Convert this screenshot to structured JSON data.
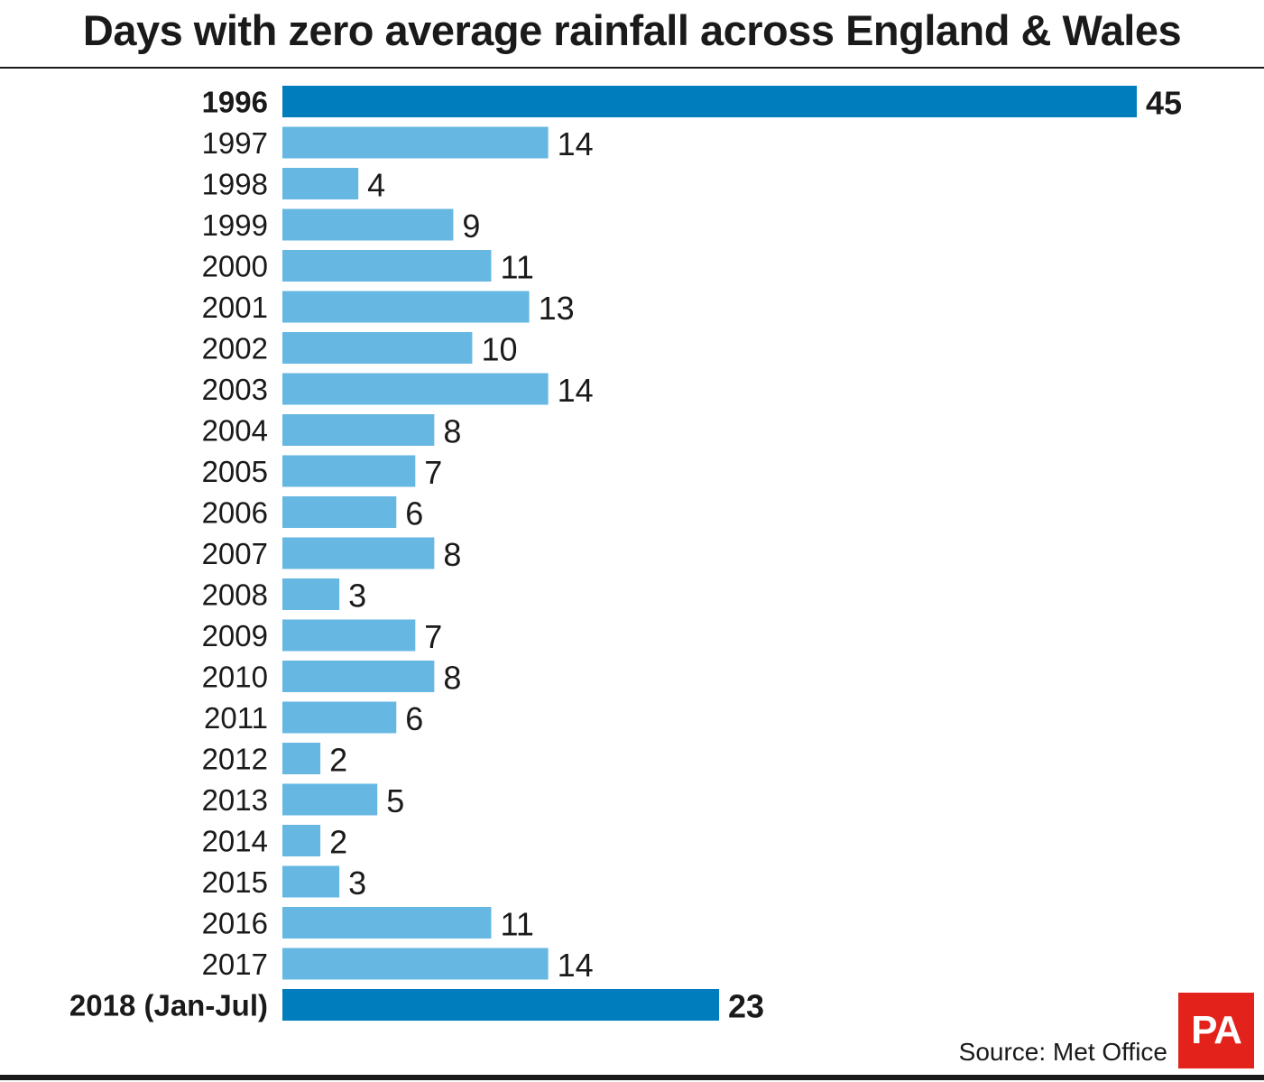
{
  "chart_data": {
    "type": "bar",
    "orientation": "horizontal",
    "title": "Days with zero average rainfall across England & Wales",
    "xlabel": "",
    "ylabel": "",
    "xlim": [
      0,
      45
    ],
    "grid": false,
    "categories": [
      "1996",
      "1997",
      "1998",
      "1999",
      "2000",
      "2001",
      "2002",
      "2003",
      "2004",
      "2005",
      "2006",
      "2007",
      "2008",
      "2009",
      "2010",
      "2011",
      "2012",
      "2013",
      "2014",
      "2015",
      "2016",
      "2017",
      "2018 (Jan-Jul)"
    ],
    "values": [
      45,
      14,
      4,
      9,
      11,
      13,
      10,
      14,
      8,
      7,
      6,
      8,
      3,
      7,
      8,
      6,
      2,
      5,
      2,
      3,
      11,
      14,
      23
    ],
    "highlighted": [
      "1996",
      "2018 (Jan-Jul)"
    ],
    "colors": {
      "bar": "#66b8e3",
      "highlight": "#007dbc"
    }
  },
  "footer": {
    "source": "Source: Met Office",
    "logo_text": "PA"
  }
}
